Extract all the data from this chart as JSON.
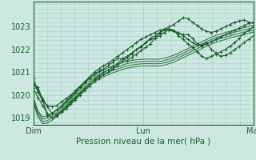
{
  "xlabel": "Pression niveau de la mer( hPa )",
  "bg_color": "#cce8e0",
  "grid_color": "#aacccc",
  "line_color": "#1a5e2a",
  "x_tick_labels": [
    "Dim",
    "Lun",
    "Mar"
  ],
  "ylim": [
    1018.7,
    1024.1
  ],
  "y_ticks": [
    1019,
    1020,
    1021,
    1022,
    1023
  ],
  "figsize": [
    3.2,
    2.0
  ],
  "dpi": 100,
  "series_smooth": [
    [
      1019.9,
      1019.3,
      1019.05,
      1019.1,
      1019.2,
      1019.35,
      1019.55,
      1019.75,
      1019.95,
      1020.15,
      1020.35,
      1020.55,
      1020.72,
      1020.87,
      1021.0,
      1021.1,
      1021.2,
      1021.28,
      1021.35,
      1021.42,
      1021.48,
      1021.52,
      1021.55,
      1021.57,
      1021.58,
      1021.58,
      1021.57,
      1021.58,
      1021.62,
      1021.68,
      1021.75,
      1021.84,
      1021.94,
      1022.04,
      1022.14,
      1022.24,
      1022.34,
      1022.44,
      1022.54,
      1022.62,
      1022.68,
      1022.74,
      1022.8,
      1022.86,
      1022.91,
      1022.96,
      1023.01,
      1023.06
    ],
    [
      1019.85,
      1019.25,
      1018.95,
      1018.98,
      1019.1,
      1019.25,
      1019.45,
      1019.65,
      1019.85,
      1020.05,
      1020.25,
      1020.45,
      1020.62,
      1020.77,
      1020.9,
      1021.0,
      1021.1,
      1021.18,
      1021.25,
      1021.32,
      1021.38,
      1021.42,
      1021.45,
      1021.47,
      1021.48,
      1021.48,
      1021.47,
      1021.48,
      1021.52,
      1021.58,
      1021.65,
      1021.74,
      1021.84,
      1021.94,
      1022.04,
      1022.14,
      1022.24,
      1022.34,
      1022.44,
      1022.52,
      1022.58,
      1022.64,
      1022.7,
      1022.76,
      1022.81,
      1022.86,
      1022.91,
      1022.96
    ],
    [
      1019.75,
      1019.15,
      1018.85,
      1018.88,
      1019.0,
      1019.15,
      1019.35,
      1019.55,
      1019.75,
      1019.95,
      1020.15,
      1020.35,
      1020.52,
      1020.67,
      1020.8,
      1020.9,
      1021.0,
      1021.08,
      1021.15,
      1021.22,
      1021.28,
      1021.32,
      1021.35,
      1021.37,
      1021.38,
      1021.38,
      1021.37,
      1021.38,
      1021.42,
      1021.48,
      1021.55,
      1021.64,
      1021.74,
      1021.84,
      1021.94,
      1022.04,
      1022.14,
      1022.24,
      1022.34,
      1022.42,
      1022.48,
      1022.54,
      1022.6,
      1022.66,
      1022.71,
      1022.76,
      1022.81,
      1022.86
    ],
    [
      1019.65,
      1019.05,
      1018.75,
      1018.78,
      1018.9,
      1019.05,
      1019.25,
      1019.45,
      1019.65,
      1019.85,
      1020.05,
      1020.25,
      1020.42,
      1020.57,
      1020.7,
      1020.8,
      1020.9,
      1020.98,
      1021.05,
      1021.12,
      1021.18,
      1021.22,
      1021.25,
      1021.27,
      1021.28,
      1021.28,
      1021.27,
      1021.28,
      1021.32,
      1021.38,
      1021.45,
      1021.54,
      1021.64,
      1021.74,
      1021.84,
      1021.94,
      1022.04,
      1022.14,
      1022.24,
      1022.32,
      1022.38,
      1022.44,
      1022.5,
      1022.56,
      1022.61,
      1022.66,
      1022.71,
      1022.76
    ]
  ],
  "series_marked": [
    [
      1020.5,
      1020.35,
      1019.8,
      1019.1,
      1019.2,
      1019.35,
      1019.5,
      1019.7,
      1019.9,
      1020.1,
      1020.35,
      1020.55,
      1020.75,
      1020.9,
      1021.05,
      1021.15,
      1021.3,
      1021.45,
      1021.6,
      1021.6,
      1021.5,
      1021.65,
      1021.8,
      1021.95,
      1022.1,
      1022.25,
      1022.5,
      1022.7,
      1022.9,
      1022.9,
      1022.8,
      1022.7,
      1022.65,
      1022.65,
      1022.5,
      1022.25,
      1022.2,
      1022.3,
      1022.0,
      1021.85,
      1021.7,
      1021.75,
      1021.85,
      1022.0,
      1022.15,
      1022.3,
      1022.45,
      1022.6
    ],
    [
      1020.75,
      1020.15,
      1019.75,
      1019.55,
      1019.5,
      1019.55,
      1019.7,
      1019.85,
      1020.0,
      1020.2,
      1020.4,
      1020.6,
      1020.8,
      1021.0,
      1021.15,
      1021.3,
      1021.4,
      1021.55,
      1021.7,
      1021.85,
      1022.0,
      1022.15,
      1022.3,
      1022.45,
      1022.55,
      1022.65,
      1022.75,
      1022.85,
      1022.9,
      1022.85,
      1022.8,
      1022.75,
      1022.6,
      1022.45,
      1022.3,
      1022.2,
      1022.15,
      1022.25,
      1022.35,
      1022.45,
      1022.55,
      1022.65,
      1022.75,
      1022.85,
      1022.95,
      1023.05,
      1023.15,
      1023.2
    ],
    [
      1020.5,
      1020.2,
      1019.85,
      1019.5,
      1019.2,
      1019.15,
      1019.3,
      1019.5,
      1019.7,
      1019.9,
      1020.1,
      1020.3,
      1020.5,
      1020.7,
      1020.85,
      1021.0,
      1021.1,
      1021.25,
      1021.4,
      1021.6,
      1021.7,
      1021.85,
      1022.0,
      1022.1,
      1022.3,
      1022.45,
      1022.5,
      1022.6,
      1022.75,
      1022.9,
      1022.85,
      1022.6,
      1022.45,
      1022.25,
      1022.1,
      1021.9,
      1021.7,
      1021.6,
      1021.7,
      1021.8,
      1021.9,
      1022.0,
      1022.15,
      1022.3,
      1022.5,
      1022.7,
      1022.85,
      1023.0
    ],
    [
      1020.3,
      1019.9,
      1019.55,
      1019.2,
      1019.0,
      1019.1,
      1019.25,
      1019.4,
      1019.6,
      1019.8,
      1020.0,
      1020.2,
      1020.4,
      1020.6,
      1020.75,
      1020.9,
      1021.0,
      1021.15,
      1021.3,
      1021.5,
      1021.65,
      1021.8,
      1022.0,
      1022.15,
      1022.3,
      1022.5,
      1022.6,
      1022.75,
      1022.85,
      1023.0,
      1023.1,
      1023.25,
      1023.4,
      1023.35,
      1023.2,
      1023.05,
      1022.9,
      1022.8,
      1022.75,
      1022.8,
      1022.9,
      1023.0,
      1023.1,
      1023.2,
      1023.25,
      1023.3,
      1023.2,
      1023.15
    ]
  ]
}
